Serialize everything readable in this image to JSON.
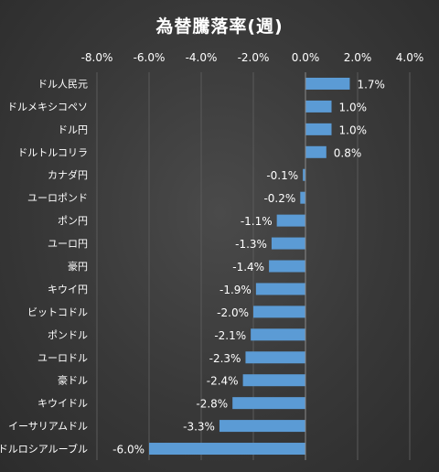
{
  "chart_data": {
    "type": "bar",
    "orientation": "horizontal",
    "title": "為替騰落率(週)",
    "xlabel": "",
    "ylabel": "",
    "xlim": [
      -8.0,
      4.0
    ],
    "x_ticks": [
      "-8.0%",
      "-6.0%",
      "-4.0%",
      "-2.0%",
      "0.0%",
      "2.0%",
      "4.0%"
    ],
    "x_tick_values": [
      -8.0,
      -6.0,
      -4.0,
      -2.0,
      0.0,
      2.0,
      4.0
    ],
    "grid": true,
    "legend": "none",
    "colors": {
      "bar": "#5b9bd5",
      "grid": "#5a5a5a",
      "text": "#ffffff"
    },
    "categories": [
      "ドル人民元",
      "ドルメキシコペソ",
      "ドル円",
      "ドルトルコリラ",
      "カナダ円",
      "ユーロポンド",
      "ポン円",
      "ユーロ円",
      "豪円",
      "キウイ円",
      "ビットコドル",
      "ポンドル",
      "ユーロドル",
      "豪ドル",
      "キウイドル",
      "イーサリアムドル",
      "ドルロシアルーブル"
    ],
    "values": [
      1.7,
      1.0,
      1.0,
      0.8,
      -0.1,
      -0.2,
      -1.1,
      -1.3,
      -1.4,
      -1.9,
      -2.0,
      -2.1,
      -2.3,
      -2.4,
      -2.8,
      -3.3,
      -6.0
    ],
    "data_labels": [
      "1.7%",
      "1.0%",
      "1.0%",
      "0.8%",
      "-0.1%",
      "-0.2%",
      "-1.1%",
      "-1.3%",
      "-1.4%",
      "-1.9%",
      "-2.0%",
      "-2.1%",
      "-2.3%",
      "-2.4%",
      "-2.8%",
      "-3.3%",
      "-6.0%"
    ]
  }
}
